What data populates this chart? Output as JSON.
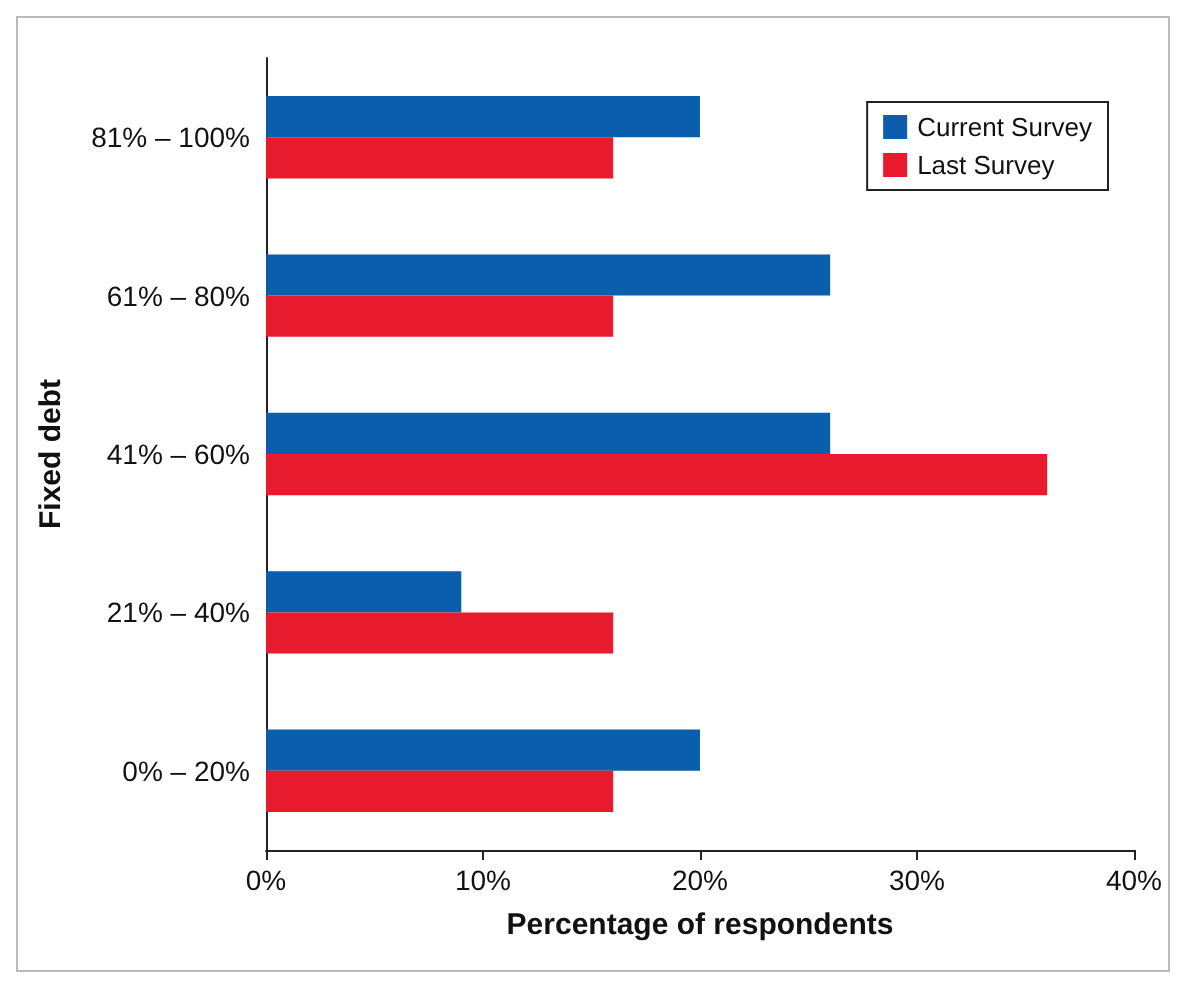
{
  "chart_data": {
    "type": "bar",
    "orientation": "horizontal",
    "xlabel": "Percentage of respondents",
    "ylabel": "Fixed debt",
    "categories": [
      "81% – 100%",
      "61% – 80%",
      "41% – 60%",
      "21% – 40%",
      "0% – 20%"
    ],
    "series": [
      {
        "name": "Current Survey",
        "color": "#0a5eab",
        "values": [
          20,
          26,
          26,
          9,
          20
        ]
      },
      {
        "name": "Last Survey",
        "color": "#e81a2e",
        "values": [
          16,
          16,
          36,
          16,
          16
        ]
      }
    ],
    "xlim": [
      0,
      40
    ],
    "xticks": [
      {
        "value": 0,
        "label": "0%"
      },
      {
        "value": 10,
        "label": "10%"
      },
      {
        "value": 20,
        "label": "20%"
      },
      {
        "value": 30,
        "label": "30%"
      },
      {
        "value": 40,
        "label": "40%"
      }
    ],
    "grid": false,
    "legend": "top right"
  }
}
